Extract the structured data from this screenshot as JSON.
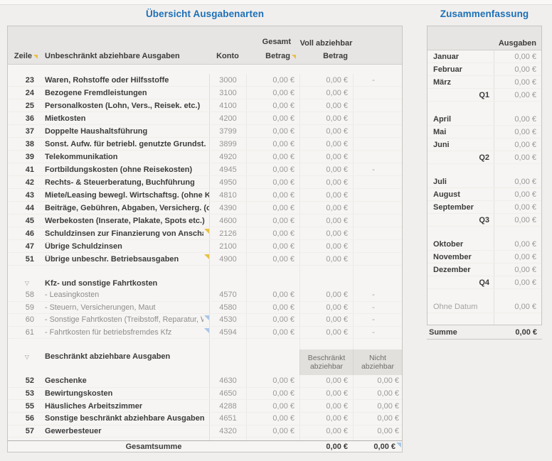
{
  "frame": {
    "background": "#f1efed",
    "accent_blue": "#1d70b8",
    "marker_yellow": "#e9c142",
    "marker_blue": "#a9c6e8"
  },
  "overview": {
    "title": "Übersicht Ausgabenarten",
    "header": {
      "zeile": "Zeile",
      "expenses": "Unbeschränkt abziehbare Ausgaben",
      "konto": "Konto",
      "gesamt": "Gesamt",
      "betrag_gesamt": "Betrag",
      "voll_abziehbar": "Voll abziehbar",
      "betrag_voll": "Betrag"
    },
    "rows": [
      {
        "zeile": "23",
        "name": "Waren, Rohstoffe oder Hilfsstoffe",
        "konto": "3000",
        "gesamt": "0,00 €",
        "voll": "0,00 €",
        "c3": "-"
      },
      {
        "zeile": "24",
        "name": "Bezogene Fremdleistungen",
        "konto": "3100",
        "gesamt": "0,00 €",
        "voll": "0,00 €",
        "c3": ""
      },
      {
        "zeile": "25",
        "name": "Personalkosten (Lohn, Vers., Reisek. etc.)",
        "konto": "4100",
        "gesamt": "0,00 €",
        "voll": "0,00 €",
        "c3": ""
      },
      {
        "zeile": "36",
        "name": "Mietkosten",
        "konto": "4200",
        "gesamt": "0,00 €",
        "voll": "0,00 €",
        "c3": ""
      },
      {
        "zeile": "37",
        "name": "Doppelte Haushaltsführung",
        "konto": "3799",
        "gesamt": "0,00 €",
        "voll": "0,00 €",
        "c3": ""
      },
      {
        "zeile": "38",
        "name": "Sonst. Aufw. für betriebl. genutzte Grundst.",
        "konto": "3899",
        "gesamt": "0,00 €",
        "voll": "0,00 €",
        "c3": ""
      },
      {
        "zeile": "39",
        "name": "Telekommunikation",
        "konto": "4920",
        "gesamt": "0,00 €",
        "voll": "0,00 €",
        "c3": ""
      },
      {
        "zeile": "41",
        "name": "Fortbildungskosten (ohne Reisekosten)",
        "konto": "4945",
        "gesamt": "0,00 €",
        "voll": "0,00 €",
        "c3": "-"
      },
      {
        "zeile": "42",
        "name": "Rechts- & Steuerberatung, Buchführung",
        "konto": "4950",
        "gesamt": "0,00 €",
        "voll": "0,00 €",
        "c3": ""
      },
      {
        "zeile": "43",
        "name": "Miete/Leasing bewegl. Wirtschaftsg. (ohne Kf",
        "konto": "4810",
        "gesamt": "0,00 €",
        "voll": "0,00 €",
        "c3": ""
      },
      {
        "zeile": "44",
        "name": "Beiträge, Gebühren, Abgaben, Versicherg. (oh",
        "konto": "4390",
        "gesamt": "0,00 €",
        "voll": "0,00 €",
        "c3": ""
      },
      {
        "zeile": "45",
        "name": "Werbekosten (Inserate, Plakate, Spots etc.)",
        "konto": "4600",
        "gesamt": "0,00 €",
        "voll": "0,00 €",
        "c3": ""
      },
      {
        "zeile": "46",
        "name": "Schuldzinsen zur Finanzierung von Anschaffu",
        "konto": "2126",
        "gesamt": "0,00 €",
        "voll": "0,00 €",
        "c3": "",
        "marker": "yellow"
      },
      {
        "zeile": "47",
        "name": "Übrige Schuldzinsen",
        "konto": "2100",
        "gesamt": "0,00 €",
        "voll": "0,00 €",
        "c3": ""
      },
      {
        "zeile": "51",
        "name": "Übrige unbeschr. Betriebsausgaben",
        "konto": "4900",
        "gesamt": "0,00 €",
        "voll": "0,00 €",
        "c3": "",
        "marker": "yellow"
      }
    ],
    "kfz": {
      "title": "Kfz- und sonstige Fahrtkosten",
      "rows": [
        {
          "zeile": "58",
          "name": "- Leasingkosten",
          "konto": "4570",
          "gesamt": "0,00 €",
          "voll": "0,00 €",
          "c3": "-"
        },
        {
          "zeile": "59",
          "name": "- Steuern, Versicherungen, Maut",
          "konto": "4580",
          "gesamt": "0,00 €",
          "voll": "0,00 €",
          "c3": "-"
        },
        {
          "zeile": "60",
          "name": "- Sonstige Fahrtkosten (Treibstoff, Reparatur, W",
          "konto": "4530",
          "gesamt": "0,00 €",
          "voll": "0,00 €",
          "c3": "-",
          "marker": "blue"
        },
        {
          "zeile": "61",
          "name": "- Fahrtkosten für betriebsfremdes Kfz",
          "konto": "4594",
          "gesamt": "0,00 €",
          "voll": "0,00 €",
          "c3": "-",
          "marker": "blue"
        }
      ]
    },
    "limited": {
      "title": "Beschränkt abziehbare Ausgaben",
      "col_beschraenkt": "Beschränkt abziehbar",
      "col_nicht": "Nicht abziehbar",
      "rows": [
        {
          "zeile": "52",
          "name": "Geschenke",
          "konto": "4630",
          "gesamt": "0,00 €",
          "beschraenkt": "0,00 €",
          "nicht": "0,00 €"
        },
        {
          "zeile": "53",
          "name": "Bewirtungskosten",
          "konto": "4650",
          "gesamt": "0,00 €",
          "beschraenkt": "0,00 €",
          "nicht": "0,00 €"
        },
        {
          "zeile": "55",
          "name": "Häusliches Arbeitszimmer",
          "konto": "4288",
          "gesamt": "0,00 €",
          "beschraenkt": "0,00 €",
          "nicht": "0,00 €"
        },
        {
          "zeile": "56",
          "name": "Sonstige beschränkt abziehbare Ausgaben",
          "konto": "4651",
          "gesamt": "0,00 €",
          "beschraenkt": "0,00 €",
          "nicht": "0,00 €"
        },
        {
          "zeile": "57",
          "name": "Gewerbesteuer",
          "konto": "4320",
          "gesamt": "0,00 €",
          "beschraenkt": "0,00 €",
          "nicht": "0,00 €"
        }
      ]
    },
    "total": {
      "label": "Gesamtsumme",
      "beschraenkt": "0,00 €",
      "nicht": "0,00 €"
    }
  },
  "summary": {
    "title": "Zusammenfassung",
    "col_ausgaben": "Ausgaben",
    "rows": [
      {
        "label": "Januar",
        "value": "0,00 €",
        "type": "month"
      },
      {
        "label": "Februar",
        "value": "0,00 €",
        "type": "month"
      },
      {
        "label": "März",
        "value": "0,00 €",
        "type": "month"
      },
      {
        "label": "Q1",
        "value": "0,00 €",
        "type": "quarter"
      },
      {
        "label": "",
        "value": "",
        "type": "spacer"
      },
      {
        "label": "April",
        "value": "0,00 €",
        "type": "month"
      },
      {
        "label": "Mai",
        "value": "0,00 €",
        "type": "month"
      },
      {
        "label": "Juni",
        "value": "0,00 €",
        "type": "month"
      },
      {
        "label": "Q2",
        "value": "0,00 €",
        "type": "quarter"
      },
      {
        "label": "",
        "value": "",
        "type": "spacer"
      },
      {
        "label": "Juli",
        "value": "0,00 €",
        "type": "month"
      },
      {
        "label": "August",
        "value": "0,00 €",
        "type": "month"
      },
      {
        "label": "September",
        "value": "0,00 €",
        "type": "month"
      },
      {
        "label": "Q3",
        "value": "0,00 €",
        "type": "quarter"
      },
      {
        "label": "",
        "value": "",
        "type": "spacer"
      },
      {
        "label": "Oktober",
        "value": "0,00 €",
        "type": "month"
      },
      {
        "label": "November",
        "value": "0,00 €",
        "type": "month"
      },
      {
        "label": "Dezember",
        "value": "0,00 €",
        "type": "month"
      },
      {
        "label": "Q4",
        "value": "0,00 €",
        "type": "quarter"
      },
      {
        "label": "",
        "value": "",
        "type": "spacer"
      },
      {
        "label": "Ohne Datum",
        "value": "0,00 €",
        "type": "nodate"
      },
      {
        "label": "",
        "value": "",
        "type": "spacer"
      }
    ],
    "total": {
      "label": "Summe",
      "value": "0,00 €"
    }
  }
}
